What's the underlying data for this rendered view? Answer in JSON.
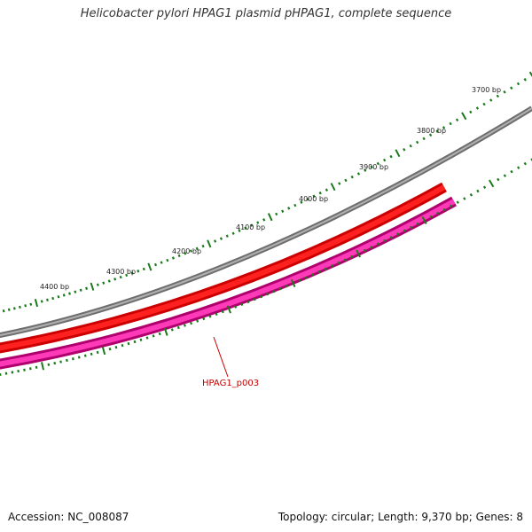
{
  "title": "Helicobacter pylori HPAG1 plasmid pHPAG1, complete sequence",
  "tick_labels": [
    "3700 bp",
    "3800 bp",
    "3900 bp",
    "4000 bp",
    "4100 bp",
    "4200 bp",
    "4300 bp",
    "4400 bp"
  ],
  "gene_label": "HPAG1_p003",
  "footer": {
    "accession": "Accession: NC_008087",
    "summary": "Topology: circular; Length: 9,370 bp; Genes: 8"
  },
  "colors": {
    "backbone": "#808080",
    "gene_forward": "#ff0000",
    "gene_reverse": "#ff1aa8",
    "tick": "#1a7a1a",
    "label_line": "#d00000"
  }
}
